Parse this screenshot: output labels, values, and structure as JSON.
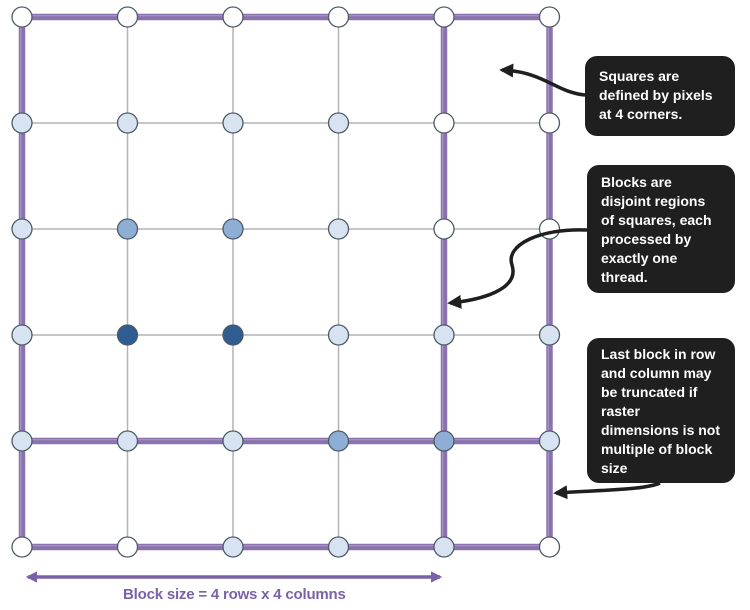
{
  "colors": {
    "block_border": "#8a72ad",
    "grid_line": "#b4b4b4",
    "node_outline": "#4d5a66",
    "node_white": "#ffffff",
    "node_light": "#d8e3f1",
    "node_medium": "#8faed6",
    "node_dark": "#2f5c91",
    "callout_bg": "#1f1f1f",
    "callout_text": "#ffffff",
    "caption_text": "#7b62a6"
  },
  "grid": {
    "rows": 6,
    "columns": 6,
    "block_size_rows": 4,
    "block_size_columns": 4,
    "node_states": [
      [
        "white",
        "white",
        "white",
        "white",
        "white",
        "white"
      ],
      [
        "light",
        "light",
        "light",
        "light",
        "white",
        "white"
      ],
      [
        "light",
        "medium",
        "medium",
        "light",
        "white",
        "white"
      ],
      [
        "light",
        "dark",
        "dark",
        "light",
        "light",
        "light"
      ],
      [
        "light",
        "light",
        "light",
        "medium",
        "medium",
        "light"
      ],
      [
        "white",
        "white",
        "light",
        "light",
        "light",
        "white"
      ]
    ]
  },
  "callouts": {
    "squares": "Squares are\ndefined by pixels\nat 4 corners.",
    "blocks": "Blocks are\ndisjoint regions\nof squares, each\nprocessed by\nexactly one\nthread.",
    "last_block": "Last block in row\nand column may\nbe truncated if\nraster\ndimensions is not\nmultiple of block\nsize"
  },
  "caption": "Block size = 4 rows x 4 columns"
}
